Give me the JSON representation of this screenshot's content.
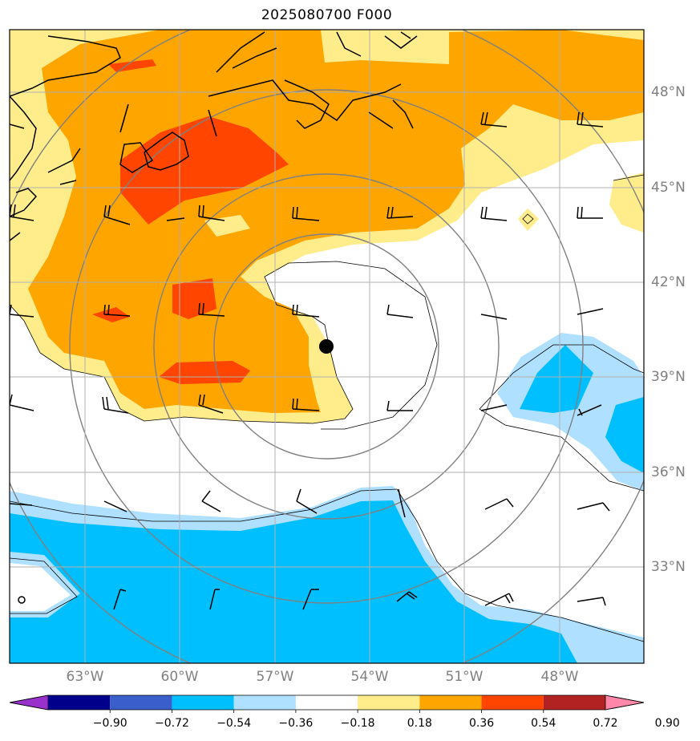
{
  "title": "2025080700 F000",
  "lat_labels": [
    "48°N",
    "45°N",
    "42°N",
    "39°N",
    "36°N",
    "33°N"
  ],
  "lon_labels": [
    "63°W",
    "60°W",
    "57°W",
    "54°W",
    "51°W",
    "48°W"
  ],
  "colorbar": {
    "ticks": [
      "−0.90",
      "−0.72",
      "−0.54",
      "−0.36",
      "−0.18",
      "0.18",
      "0.36",
      "0.54",
      "0.72",
      "0.90"
    ],
    "colors": [
      "#9932cc",
      "#00008b",
      "#3a5fcd",
      "#00bfff",
      "#b0e0ff",
      "#ffffff",
      "#ffec8b",
      "#ffa500",
      "#ff4500",
      "#b22222",
      "#ff88aa"
    ]
  },
  "storm_center": {
    "lat": "40.0°N",
    "lon": "55.4°W"
  }
}
